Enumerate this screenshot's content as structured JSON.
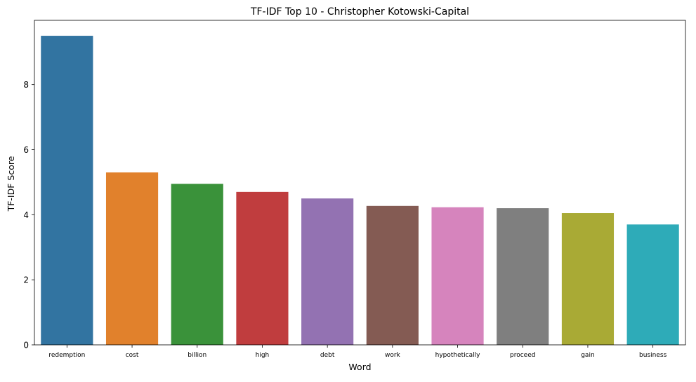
{
  "chart_data": {
    "type": "bar",
    "title": "TF-IDF Top 10 - Christopher Kotowski-Capital",
    "xlabel": "Word",
    "ylabel": "TF-IDF Score",
    "categories": [
      "redemption",
      "cost",
      "billion",
      "high",
      "debt",
      "work",
      "hypothetically",
      "proceed",
      "gain",
      "business"
    ],
    "values": [
      9.5,
      5.3,
      4.95,
      4.7,
      4.5,
      4.27,
      4.23,
      4.2,
      4.05,
      3.7
    ],
    "colors": [
      "#3274a1",
      "#e1812c",
      "#3a923a",
      "#c03d3e",
      "#9372b2",
      "#845b53",
      "#d684bd",
      "#7f7f7f",
      "#a9aa35",
      "#2eabb8"
    ],
    "yticks": [
      0,
      2,
      4,
      6,
      8
    ],
    "ylim": [
      0,
      9.975
    ],
    "grid": false,
    "legend": "none"
  }
}
